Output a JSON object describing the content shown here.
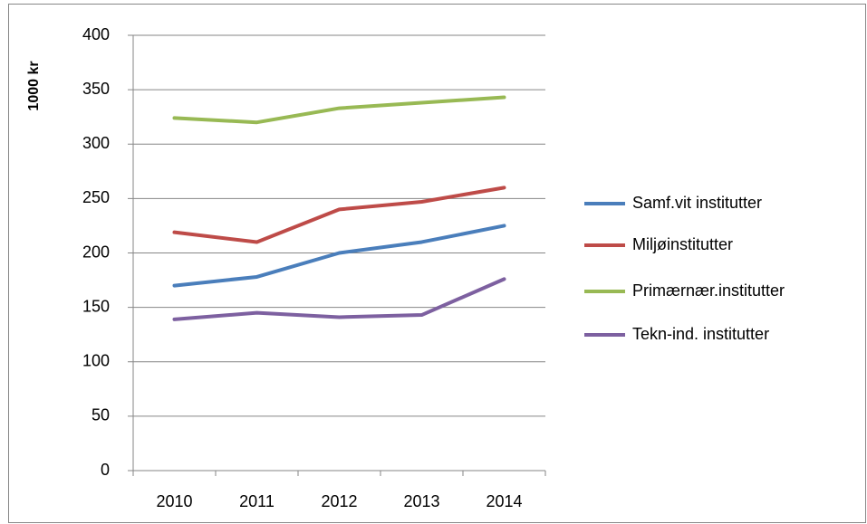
{
  "chart_data": {
    "type": "line",
    "y_label": "1000 kr",
    "categories": [
      "2010",
      "2011",
      "2012",
      "2013",
      "2014"
    ],
    "series": [
      {
        "name": "Samf.vit institutter",
        "color": "#4a7ebb",
        "values": [
          170,
          178,
          200,
          210,
          225
        ]
      },
      {
        "name": "Miljøinstitutter",
        "color": "#be4b48",
        "values": [
          219,
          210,
          240,
          247,
          260
        ]
      },
      {
        "name": "Primærnær.institutter",
        "color": "#98b954",
        "values": [
          324,
          320,
          333,
          338,
          343
        ]
      },
      {
        "name": "Tekn-ind. institutter",
        "color": "#7d60a0",
        "values": [
          139,
          145,
          141,
          143,
          176
        ]
      }
    ],
    "ylim": [
      0,
      400
    ],
    "yticks": [
      0,
      50,
      100,
      150,
      200,
      250,
      300,
      350,
      400
    ],
    "grid": true,
    "legend": "right"
  }
}
